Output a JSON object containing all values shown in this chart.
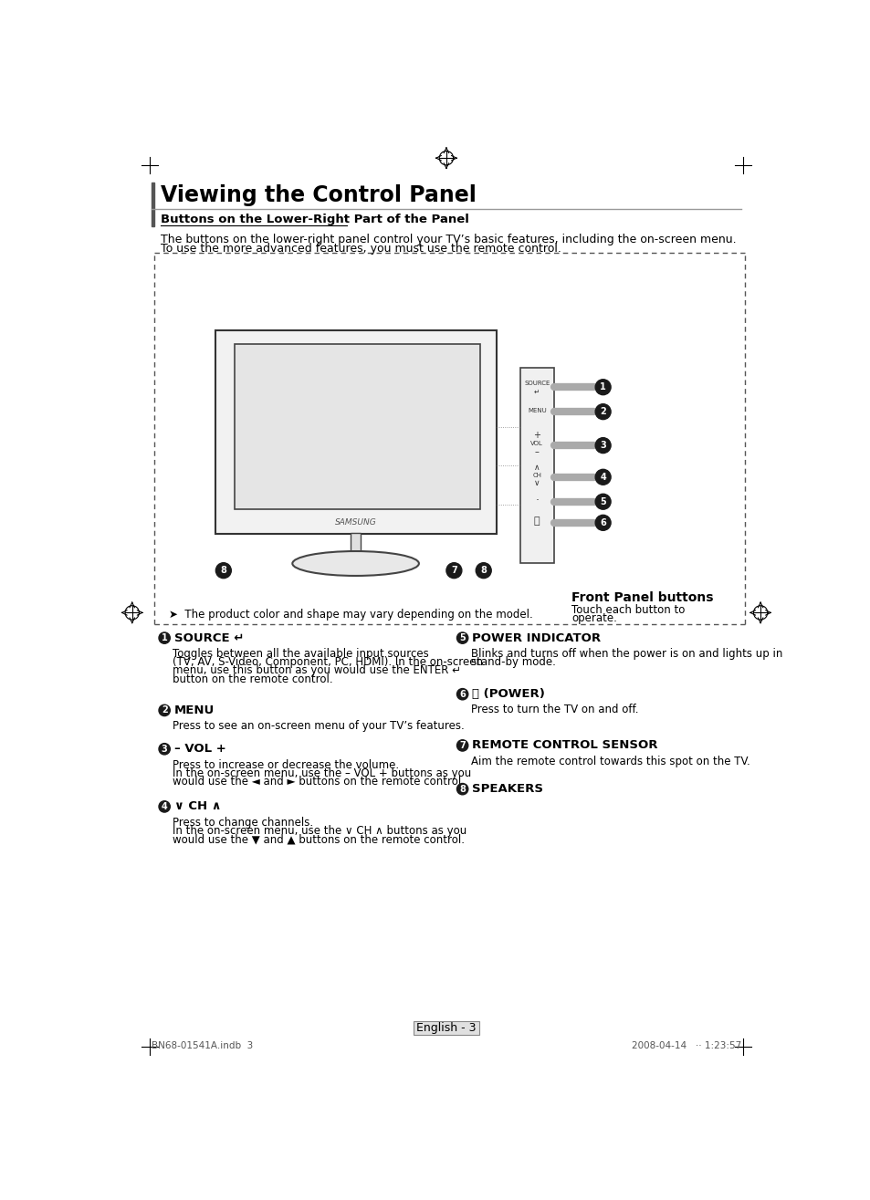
{
  "title": "Viewing the Control Panel",
  "subtitle": "Buttons on the Lower-Right Part of the Panel",
  "intro_text": [
    "The buttons on the lower-right panel control your TV’s basic features, including the on-screen menu.",
    "To use the more advanced features, you must use the remote control."
  ],
  "note_text": "➤  The product color and shape may vary depending on the model.",
  "front_panel_label": "Front Panel buttons",
  "front_panel_sub1": "Touch each button to",
  "front_panel_sub2": "operate.",
  "items": [
    {
      "num": "1",
      "heading": "SOURCE ↵",
      "body": [
        "Toggles between all the available input sources",
        "(TV, AV, S-Video, Component, PC, HDMI). In the on-screen",
        "menu, use this button as you would use the ENTER ↵",
        "button on the remote control."
      ]
    },
    {
      "num": "2",
      "heading": "MENU",
      "body": [
        "Press to see an on-screen menu of your TV’s features."
      ]
    },
    {
      "num": "3",
      "heading": "– VOL +",
      "body": [
        "Press to increase or decrease the volume.",
        "In the on-screen menu, use the – VOL + buttons as you",
        "would use the ◄ and ► buttons on the remote control."
      ]
    },
    {
      "num": "4",
      "heading": "∨ CH ∧",
      "body": [
        "Press to change channels.",
        "In the on-screen menu, use the ∨ CH ∧ buttons as you",
        "would use the ▼ and ▲ buttons on the remote control."
      ]
    },
    {
      "num": "5",
      "heading": "POWER INDICATOR",
      "body": [
        "Blinks and turns off when the power is on and lights up in",
        "stand-by mode."
      ]
    },
    {
      "num": "6",
      "heading": "⏻ (POWER)",
      "body": [
        "Press to turn the TV on and off."
      ]
    },
    {
      "num": "7",
      "heading": "REMOTE CONTROL SENSOR",
      "body": [
        "Aim the remote control towards this spot on the TV."
      ]
    },
    {
      "num": "8",
      "heading": "SPEAKERS",
      "body": []
    }
  ],
  "footer_left": "BN68-01541A.indb  3",
  "footer_right": "2008-04-14   ·· 1:23:57",
  "page_num": "English - 3",
  "bg_color": "#ffffff",
  "text_color": "#000000",
  "gray_color": "#808080",
  "light_gray": "#d0d0d0",
  "dark_gray": "#404040"
}
